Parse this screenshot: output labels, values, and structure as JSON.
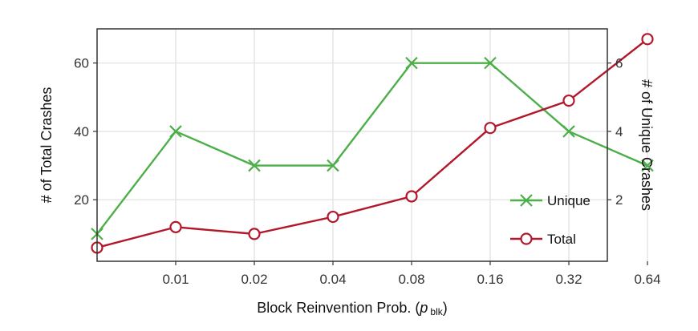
{
  "chart_data": {
    "type": "line",
    "x_categories": [
      "0.005",
      "0.01",
      "0.02",
      "0.04",
      "0.08",
      "0.16",
      "0.32",
      "0.64"
    ],
    "x_tick_labels": [
      "0.01",
      "0.02",
      "0.04",
      "0.08",
      "0.16",
      "0.32",
      "0.64"
    ],
    "xlabel": "Block Reinvention Prob. (",
    "xlabel_symbol": "p",
    "xlabel_subscript": "blk",
    "xlabel_suffix": ")",
    "ylabel_left": "# of Total Crashes",
    "ylabel_right": "# of Unique Crashes",
    "ylim_left": [
      2,
      70
    ],
    "ylim_right": [
      0.2,
      7
    ],
    "yticks_left": [
      "20",
      "40",
      "60"
    ],
    "yticks_right": [
      "2",
      "4",
      "6"
    ],
    "grid": true,
    "legend_position": "bottom-right",
    "series": [
      {
        "name": "Unique",
        "axis": "right",
        "color": "#4daf4a",
        "marker": "x",
        "values": [
          1,
          4,
          3,
          3,
          6,
          6,
          4,
          3
        ]
      },
      {
        "name": "Total",
        "axis": "left",
        "color": "#b2182b",
        "marker": "circle",
        "values": [
          6,
          12,
          10,
          15,
          21,
          41,
          49,
          67
        ]
      }
    ]
  }
}
